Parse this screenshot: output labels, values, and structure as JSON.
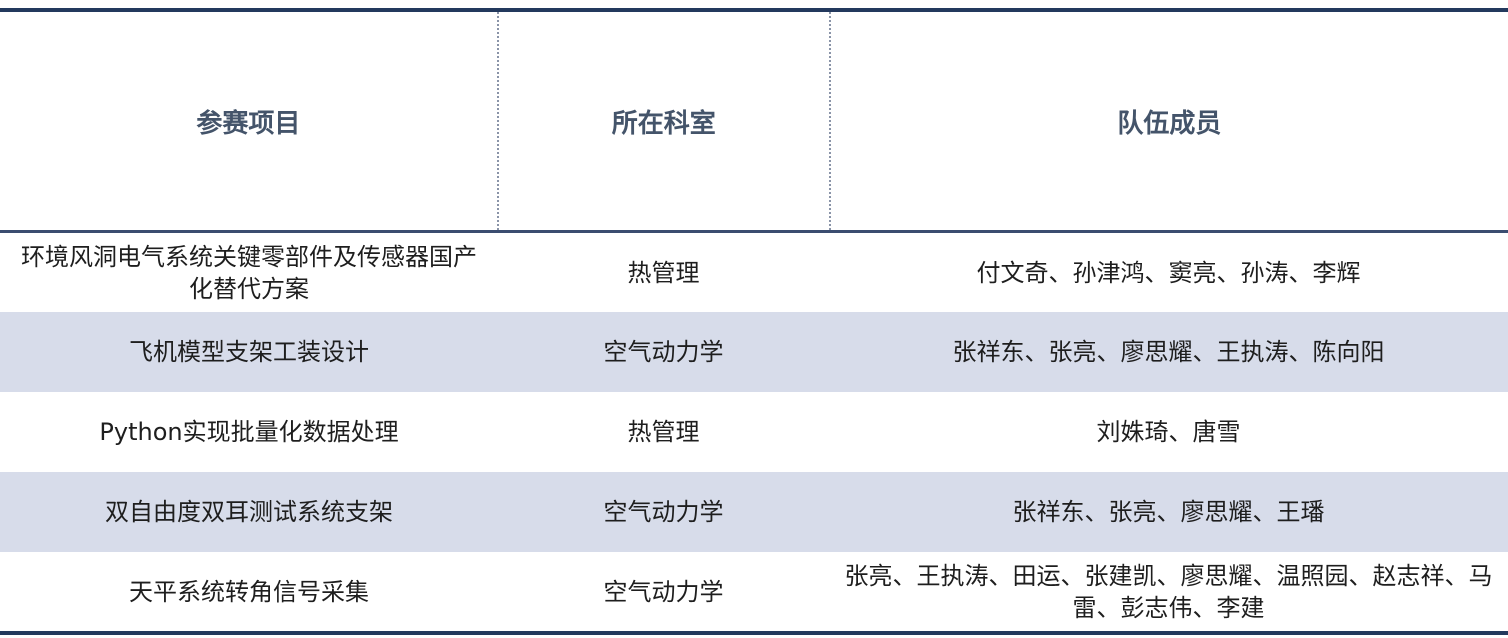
{
  "headers": [
    "参赛项目",
    "所在科室",
    "队伍成员"
  ],
  "rows": [
    {
      "project": "环境风洞电气系统关键零部件及传感器国产化替代方案",
      "department": "热管理",
      "members": "付文奇、孙津鸿、窦亮、孙涛、李辉"
    },
    {
      "project": "飞机模型支架工装设计",
      "department": "空气动力学",
      "members": "张祥东、张亮、廖思耀、王执涛、陈向阳"
    },
    {
      "project": "Python实现批量化数据处理",
      "department": "热管理",
      "members": "刘姝琦、唐雪"
    },
    {
      "project": "双自由度双耳测试系统支架",
      "department": "空气动力学",
      "members": "张祥东、张亮、廖思耀、王璠"
    },
    {
      "project": "天平系统转角信号采集",
      "department": "空气动力学",
      "members": "张亮、王执涛、田运、张建凯、廖思耀、温照园、赵志祥、马雷、彭志伟、李建"
    }
  ],
  "colors": {
    "border": "#23395d",
    "header_text": "#44546a",
    "alt_row": "#d7dcea"
  }
}
